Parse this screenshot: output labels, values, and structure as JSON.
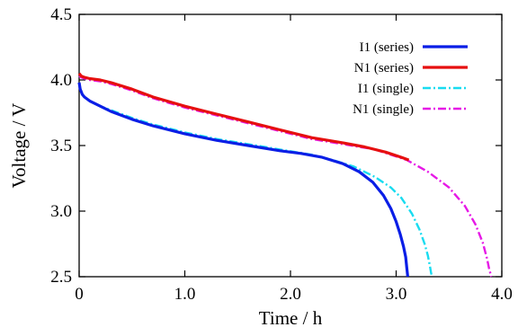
{
  "chart_data": {
    "type": "line",
    "title": "",
    "xlabel": "Time / h",
    "ylabel": "Voltage / V",
    "xlim": [
      0,
      4.0
    ],
    "ylim": [
      2.5,
      4.5
    ],
    "x_ticks": [
      "0",
      "1.0",
      "2.0",
      "3.0",
      "4.0"
    ],
    "y_ticks": [
      "2.5",
      "3.0",
      "3.5",
      "4.0",
      "4.5"
    ],
    "grid": false,
    "legend_position": "top-right",
    "series": [
      {
        "name": "I1 (series)",
        "color": "#0a1ee6",
        "style": "solid",
        "x": [
          0.0,
          0.01,
          0.03,
          0.05,
          0.1,
          0.2,
          0.3,
          0.5,
          0.7,
          1.0,
          1.3,
          1.6,
          1.9,
          2.1,
          2.3,
          2.5,
          2.65,
          2.78,
          2.88,
          2.95,
          3.0,
          3.04,
          3.07,
          3.09,
          3.1,
          3.11
        ],
        "y": [
          3.98,
          3.93,
          3.89,
          3.87,
          3.84,
          3.8,
          3.76,
          3.7,
          3.65,
          3.59,
          3.54,
          3.5,
          3.46,
          3.44,
          3.41,
          3.36,
          3.3,
          3.22,
          3.12,
          3.02,
          2.92,
          2.82,
          2.73,
          2.65,
          2.57,
          2.5
        ]
      },
      {
        "name": "N1 (series)",
        "color": "#e60f0f",
        "style": "solid",
        "x": [
          0.0,
          0.02,
          0.05,
          0.1,
          0.2,
          0.3,
          0.5,
          0.7,
          1.0,
          1.3,
          1.6,
          1.9,
          2.2,
          2.5,
          2.7,
          2.9,
          3.05,
          3.12
        ],
        "y": [
          4.05,
          4.03,
          4.02,
          4.01,
          4.0,
          3.98,
          3.93,
          3.87,
          3.8,
          3.74,
          3.68,
          3.62,
          3.56,
          3.52,
          3.49,
          3.45,
          3.41,
          3.39
        ]
      },
      {
        "name": "I1 (single)",
        "color": "#19dcf0",
        "style": "dashdot",
        "x": [
          0.0,
          0.01,
          0.03,
          0.05,
          0.1,
          0.2,
          0.3,
          0.5,
          0.7,
          1.0,
          1.3,
          1.6,
          1.9,
          2.2,
          2.4,
          2.6,
          2.8,
          2.95,
          3.05,
          3.15,
          3.22,
          3.27,
          3.3,
          3.32,
          3.33,
          3.34
        ],
        "y": [
          3.98,
          3.93,
          3.89,
          3.87,
          3.84,
          3.8,
          3.77,
          3.71,
          3.66,
          3.6,
          3.55,
          3.51,
          3.47,
          3.43,
          3.39,
          3.34,
          3.26,
          3.18,
          3.1,
          2.98,
          2.86,
          2.75,
          2.66,
          2.58,
          2.53,
          2.5
        ]
      },
      {
        "name": "N1 (single)",
        "color": "#e619e6",
        "style": "dashdot",
        "x": [
          0.0,
          0.02,
          0.05,
          0.1,
          0.2,
          0.3,
          0.5,
          0.7,
          1.0,
          1.3,
          1.6,
          1.9,
          2.2,
          2.5,
          2.8,
          3.1,
          3.3,
          3.5,
          3.65,
          3.75,
          3.82,
          3.86,
          3.88,
          3.9
        ],
        "y": [
          4.03,
          4.02,
          4.01,
          4.0,
          3.99,
          3.97,
          3.92,
          3.86,
          3.79,
          3.73,
          3.67,
          3.61,
          3.55,
          3.51,
          3.47,
          3.39,
          3.3,
          3.18,
          3.04,
          2.9,
          2.76,
          2.64,
          2.56,
          2.5
        ]
      }
    ]
  }
}
